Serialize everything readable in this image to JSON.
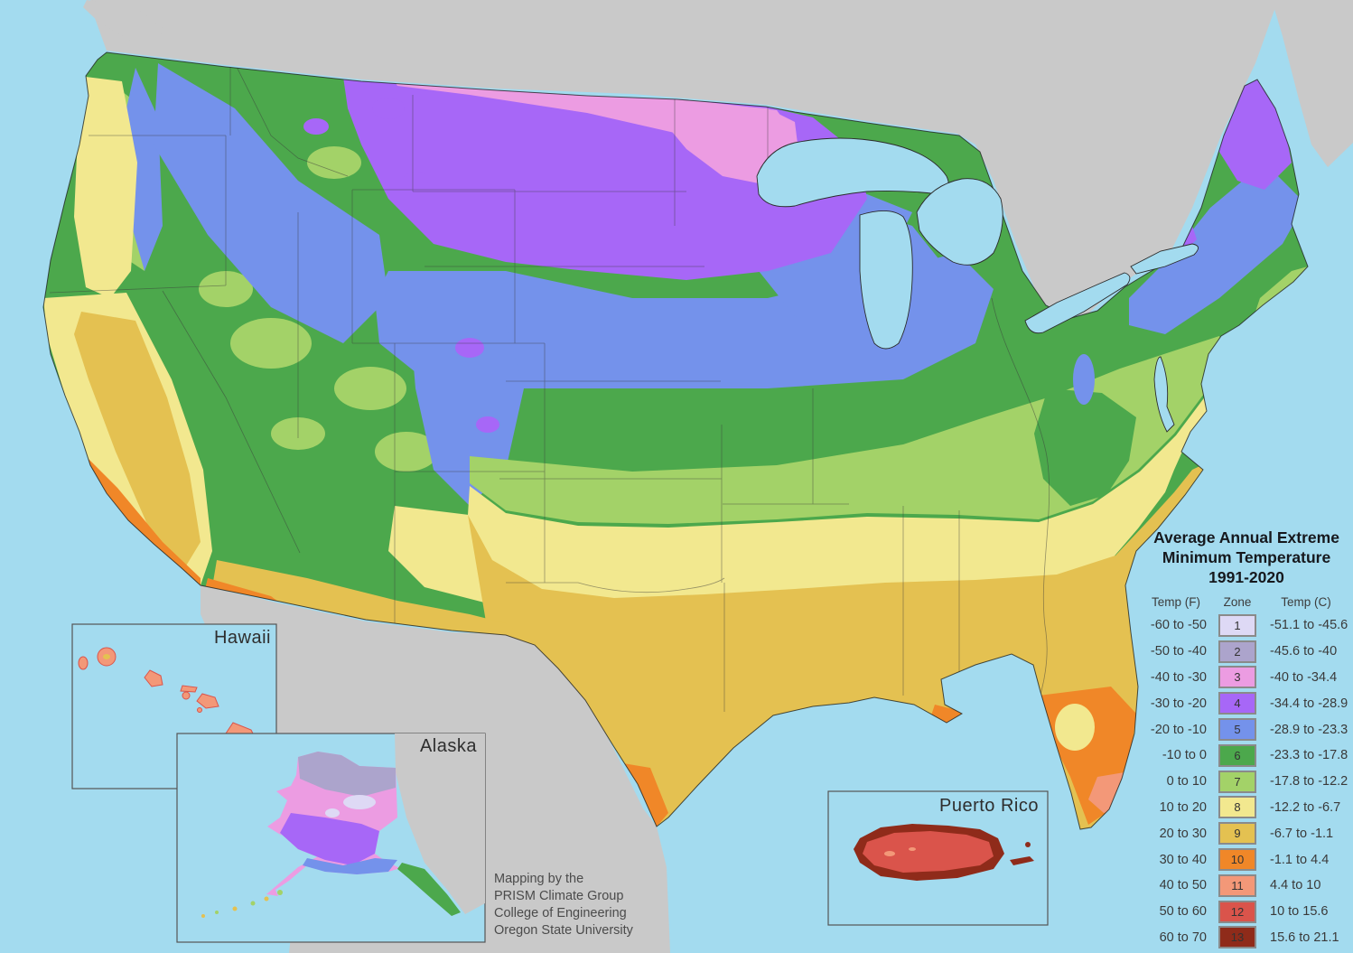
{
  "title": "Average Annual Extreme Minimum Temperature 1991-2020",
  "legend": {
    "title1": "Average Annual Extreme",
    "title2": "Minimum Temperature",
    "title3": "1991-2020",
    "col_f": "Temp (F)",
    "col_zone": "Zone",
    "col_c": "Temp (C)",
    "rows": [
      {
        "f": "-60 to -50",
        "zone": "1",
        "c": "-51.1 to -45.6",
        "color": "#DED9F5"
      },
      {
        "f": "-50 to -40",
        "zone": "2",
        "c": "-45.6 to -40",
        "color": "#ACA4CC"
      },
      {
        "f": "-40 to -30",
        "zone": "3",
        "c": "-40 to -34.4",
        "color": "#EC9CE2"
      },
      {
        "f": "-30 to -20",
        "zone": "4",
        "c": "-34.4 to -28.9",
        "color": "#A767F7"
      },
      {
        "f": "-20 to -10",
        "zone": "5",
        "c": "-28.9 to -23.3",
        "color": "#7492EB"
      },
      {
        "f": "-10 to 0",
        "zone": "6",
        "c": "-23.3 to -17.8",
        "color": "#4CA84C"
      },
      {
        "f": "0 to 10",
        "zone": "7",
        "c": "-17.8 to -12.2",
        "color": "#A3D268"
      },
      {
        "f": "10 to 20",
        "zone": "8",
        "c": "-12.2 to -6.7",
        "color": "#F2E88F"
      },
      {
        "f": "20 to 30",
        "zone": "9",
        "c": "-6.7 to -1.1",
        "color": "#E4C151"
      },
      {
        "f": "30 to 40",
        "zone": "10",
        "c": "-1.1 to 4.4",
        "color": "#F08728"
      },
      {
        "f": "40 to 50",
        "zone": "11",
        "c": "4.4 to 10",
        "color": "#F39878"
      },
      {
        "f": "50 to 60",
        "zone": "12",
        "c": "10 to 15.6",
        "color": "#DA544B"
      },
      {
        "f": "60 to 70",
        "zone": "13",
        "c": "15.6 to 21.1",
        "color": "#8F2B1A"
      }
    ]
  },
  "insets": {
    "hawaii": "Hawaii",
    "alaska": "Alaska",
    "puerto_rico": "Puerto Rico"
  },
  "attribution": {
    "line1": "Mapping by the",
    "line2": "PRISM Climate Group",
    "line3": "College of Engineering",
    "line4": "Oregon State University"
  },
  "colors": {
    "ocean": "#A3DBEF",
    "land": "#C9C9C9",
    "coastline": "#1a1a1a"
  },
  "zone_colors": {
    "z1": "#DED9F5",
    "z2": "#ACA4CC",
    "z3": "#EC9CE2",
    "z4": "#A767F7",
    "z5": "#7492EB",
    "z6": "#4CA84C",
    "z7": "#A3D268",
    "z8": "#F2E88F",
    "z9": "#E4C151",
    "z10": "#F08728",
    "z11": "#F39878",
    "z12": "#DA544B",
    "z13": "#8F2B1A"
  }
}
